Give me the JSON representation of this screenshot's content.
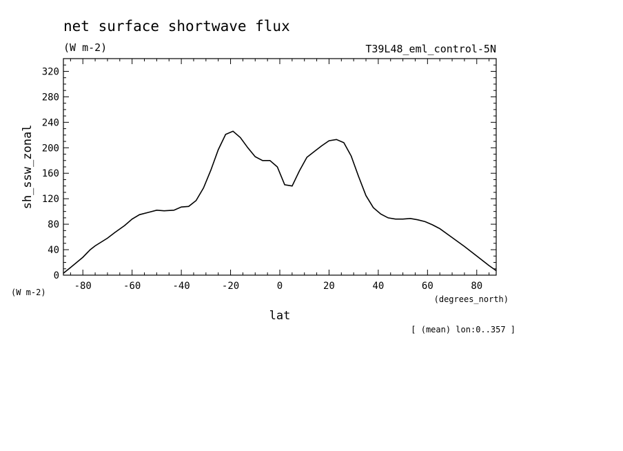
{
  "chart_data": {
    "type": "line",
    "title": "net surface shortwave flux",
    "subtitle": "(W m-2)",
    "dataset": "T39L48_eml_control-5N",
    "xlabel": "lat",
    "xunits": "(degrees_north)",
    "ylabel": "sh_ssw_zonal",
    "yunits": "(W m-2)",
    "footnote": "[ (mean) lon:0..357 ]",
    "xlim": [
      -87.9,
      87.9
    ],
    "ylim": [
      0,
      340
    ],
    "xticks": [
      -80,
      -60,
      -40,
      -20,
      0,
      20,
      40,
      60,
      80
    ],
    "yticks": [
      0,
      40,
      80,
      120,
      160,
      200,
      240,
      280,
      320
    ],
    "xtick_labels": [
      "-80",
      "-60",
      "-40",
      "-20",
      "0",
      "20",
      "40",
      "60",
      "80"
    ],
    "ytick_labels": [
      "0",
      "40",
      "80",
      "120",
      "160",
      "200",
      "240",
      "280",
      "320"
    ],
    "grid": false,
    "legend": "none",
    "color": "#000000",
    "series": [
      {
        "x": [
          -87.9,
          -85,
          -80,
          -77,
          -75,
          -70,
          -67,
          -63,
          -60,
          -57,
          -53,
          -50,
          -47,
          -43,
          -40,
          -37,
          -34,
          -31,
          -28,
          -25,
          -22,
          -19,
          -16,
          -13,
          -10,
          -7,
          -4,
          -1,
          2,
          5,
          8,
          11,
          14,
          17,
          20,
          23,
          26,
          29,
          32,
          35,
          38,
          41,
          44,
          47,
          50,
          53,
          56,
          59,
          62,
          65,
          70,
          75,
          80,
          85,
          87.9
        ],
        "y": [
          3,
          12,
          28,
          40,
          46,
          58,
          67,
          78,
          88,
          95,
          99,
          102,
          101,
          102,
          107,
          108,
          117,
          137,
          165,
          197,
          221,
          226,
          216,
          200,
          186,
          180,
          180,
          170,
          142,
          140,
          164,
          185,
          194,
          203,
          211,
          213,
          208,
          187,
          155,
          125,
          106,
          96,
          90,
          88,
          88,
          89,
          87,
          84,
          79,
          73,
          59,
          45,
          30,
          15,
          7
        ]
      }
    ]
  }
}
